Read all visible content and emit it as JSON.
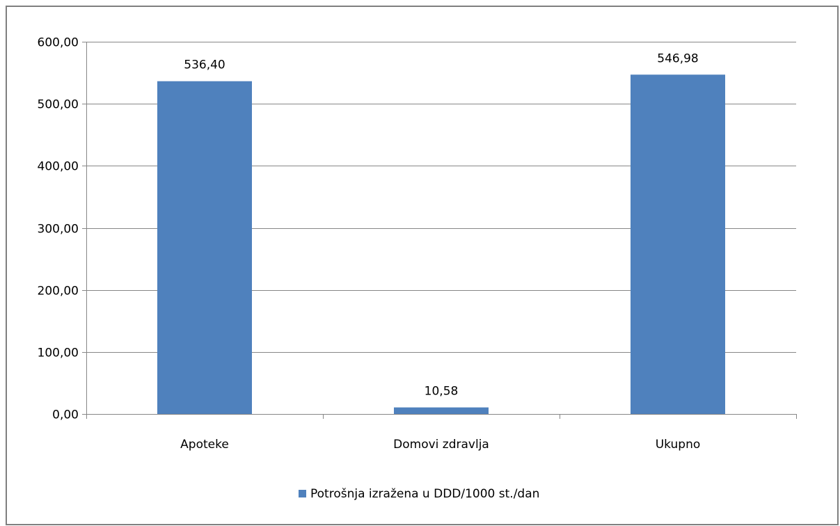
{
  "chart_data": {
    "type": "bar",
    "categories": [
      "Apoteke",
      "Domovi zdravlja",
      "Ukupno"
    ],
    "values": [
      536.4,
      10.58,
      546.98
    ],
    "value_labels": [
      "536,40",
      "10,58",
      "546,98"
    ],
    "series": [
      {
        "name": "Potrošnja izražena u DDD/1000 st./dan",
        "values": [
          536.4,
          10.58,
          546.98
        ]
      }
    ],
    "ylim": [
      0,
      600
    ],
    "yticks": [
      0,
      100,
      200,
      300,
      400,
      500,
      600
    ],
    "ytick_labels": [
      "0,00",
      "100,00",
      "200,00",
      "300,00",
      "400,00",
      "500,00",
      "600,00"
    ],
    "grid": true,
    "legend_position": "bottom",
    "colors": {
      "bar": "#4f81bd",
      "grid": "#868686",
      "axis": "#868686",
      "border": "#7f7f7f"
    }
  }
}
